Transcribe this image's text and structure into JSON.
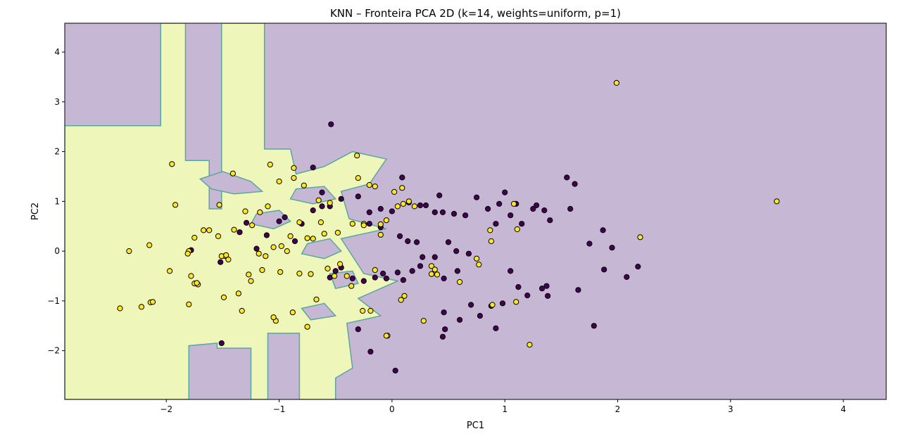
{
  "chart_data": {
    "type": "scatter",
    "title": "KNN – Fronteira PCA 2D (k=14, weights=uniform, p=1)",
    "xlabel": "PC1",
    "ylabel": "PC2",
    "xlim": [
      -2.9,
      4.38
    ],
    "ylim": [
      -2.98,
      4.58
    ],
    "xticks": [
      -2,
      -1,
      0,
      1,
      2,
      3,
      4
    ],
    "yticks": [
      -2,
      -1,
      0,
      1,
      2,
      3,
      4
    ],
    "grid": false,
    "colors": {
      "class_0_point": "#440154",
      "class_1_point": "#fde725",
      "class_0_region": "#c6b8d4",
      "class_1_region": "#eff6b9",
      "boundary": "#5aa6a0"
    },
    "decision_region_class1": [
      [
        -2.9,
        -2.98
      ],
      [
        -2.9,
        2.52
      ],
      [
        -2.05,
        2.52
      ],
      [
        -2.05,
        4.58
      ],
      [
        -1.83,
        4.58
      ],
      [
        -1.83,
        1.82
      ],
      [
        -1.62,
        1.82
      ],
      [
        -1.62,
        0.85
      ],
      [
        -1.51,
        0.85
      ],
      [
        -1.51,
        4.58
      ],
      [
        -1.13,
        4.58
      ],
      [
        -1.13,
        2.05
      ],
      [
        -0.9,
        2.05
      ],
      [
        -0.85,
        1.55
      ],
      [
        -0.6,
        1.7
      ],
      [
        -0.35,
        2.0
      ],
      [
        -0.05,
        1.85
      ],
      [
        -0.2,
        1.35
      ],
      [
        -0.45,
        1.2
      ],
      [
        -0.38,
        0.65
      ],
      [
        -0.05,
        0.45
      ],
      [
        -0.45,
        0.25
      ],
      [
        -0.25,
        -0.45
      ],
      [
        0.05,
        -0.6
      ],
      [
        -0.3,
        -0.95
      ],
      [
        -0.1,
        -1.3
      ],
      [
        -0.4,
        -1.45
      ],
      [
        -0.35,
        -2.35
      ],
      [
        -0.5,
        -2.55
      ],
      [
        -0.5,
        -2.98
      ],
      [
        -0.82,
        -2.98
      ],
      [
        -0.82,
        -1.65
      ],
      [
        -1.1,
        -1.65
      ],
      [
        -1.1,
        -2.98
      ],
      [
        -1.25,
        -2.98
      ],
      [
        -1.25,
        -1.95
      ],
      [
        -1.55,
        -1.95
      ],
      [
        -1.55,
        -1.85
      ],
      [
        -1.8,
        -1.9
      ],
      [
        -1.8,
        -2.98
      ]
    ],
    "decision_region_class0_islands": [
      [
        [
          -1.7,
          1.45
        ],
        [
          -1.5,
          1.6
        ],
        [
          -1.25,
          1.4
        ],
        [
          -1.15,
          1.2
        ],
        [
          -1.4,
          1.15
        ],
        [
          -1.6,
          1.25
        ]
      ],
      [
        [
          -1.2,
          0.75
        ],
        [
          -1.0,
          0.82
        ],
        [
          -0.9,
          0.6
        ],
        [
          -1.05,
          0.45
        ],
        [
          -1.25,
          0.55
        ]
      ],
      [
        [
          -0.85,
          1.25
        ],
        [
          -0.6,
          1.3
        ],
        [
          -0.5,
          1.05
        ],
        [
          -0.7,
          0.95
        ],
        [
          -0.9,
          1.05
        ]
      ],
      [
        [
          -0.75,
          0.15
        ],
        [
          -0.55,
          0.25
        ],
        [
          -0.45,
          0.0
        ],
        [
          -0.6,
          -0.15
        ],
        [
          -0.8,
          -0.05
        ]
      ],
      [
        [
          -0.55,
          -0.45
        ],
        [
          -0.35,
          -0.4
        ],
        [
          -0.3,
          -0.65
        ],
        [
          -0.5,
          -0.75
        ]
      ],
      [
        [
          -0.8,
          -1.15
        ],
        [
          -0.6,
          -1.05
        ],
        [
          -0.5,
          -1.3
        ],
        [
          -0.72,
          -1.38
        ]
      ]
    ],
    "series": [
      {
        "class": 0,
        "x": [
          -0.54,
          -1.78,
          -1.52,
          -1.29,
          -1.11,
          -1.0,
          -0.95,
          -0.8,
          -0.7,
          -0.62,
          -0.55,
          -0.45,
          -0.3,
          -0.2,
          -0.1,
          0.0,
          0.07,
          0.15,
          0.25,
          0.3,
          0.38,
          0.45,
          0.55,
          0.65,
          0.75,
          0.85,
          0.95,
          1.05,
          1.15,
          1.25,
          1.35,
          1.4,
          1.55,
          1.62,
          1.58,
          1.75,
          1.87,
          1.95,
          1.88,
          2.08,
          2.18,
          1.79,
          1.65,
          1.37,
          1.33,
          1.2,
          1.12,
          1.05,
          0.98,
          0.92,
          0.88,
          0.78,
          0.7,
          0.6,
          0.47,
          0.45,
          0.38,
          0.25,
          0.18,
          0.1,
          0.05,
          -0.08,
          -0.15,
          -0.25,
          -0.35,
          -0.45,
          -0.5,
          -0.3,
          -0.19,
          0.03,
          -0.55,
          -1.2,
          -1.35,
          -1.51,
          0.46,
          0.46,
          0.58,
          0.68,
          0.92,
          1.38,
          0.42,
          0.57,
          0.5,
          0.27,
          0.14,
          0.22,
          -0.62,
          -0.2,
          -0.1,
          0.09,
          -0.86,
          -0.7,
          -0.05,
          1.0,
          1.1,
          1.28
        ],
        "y": [
          2.55,
          0.02,
          -0.22,
          0.57,
          0.32,
          0.6,
          0.68,
          0.55,
          1.68,
          1.18,
          0.9,
          1.05,
          1.1,
          0.78,
          0.85,
          0.8,
          0.3,
          0.98,
          0.92,
          0.92,
          0.78,
          0.78,
          0.75,
          0.72,
          1.08,
          0.85,
          0.95,
          0.72,
          0.55,
          0.85,
          0.82,
          0.62,
          1.48,
          1.35,
          0.85,
          0.15,
          0.42,
          0.07,
          -0.37,
          -0.52,
          -0.31,
          -1.5,
          -0.78,
          -0.7,
          -0.75,
          -0.89,
          -0.72,
          -0.4,
          -1.05,
          -1.55,
          -1.1,
          -1.3,
          -1.08,
          -1.38,
          -1.57,
          -1.72,
          -0.12,
          -0.3,
          -0.4,
          -0.58,
          -0.43,
          -0.45,
          -0.53,
          -0.6,
          -0.55,
          -0.33,
          -0.4,
          -1.57,
          -2.02,
          -2.4,
          -0.53,
          0.05,
          0.38,
          -1.85,
          -1.23,
          -0.55,
          -0.4,
          -0.05,
          0.55,
          -0.9,
          1.12,
          0.0,
          0.18,
          -0.12,
          0.2,
          0.18,
          0.9,
          0.55,
          0.48,
          1.48,
          0.2,
          0.82,
          -0.55,
          1.18,
          0.95,
          0.92
        ]
      },
      {
        "class": 1,
        "x": [
          1.99,
          3.41,
          2.2,
          -1.95,
          -1.08,
          -0.87,
          -1.41,
          -1.53,
          -1.67,
          -1.75,
          -1.8,
          -2.15,
          -1.92,
          -2.14,
          -2.33,
          -2.41,
          -2.22,
          -2.12,
          -1.97,
          -1.81,
          -1.78,
          -1.72,
          -1.75,
          -1.8,
          -1.54,
          -1.48,
          -1.45,
          -1.4,
          -1.3,
          -1.25,
          -1.18,
          -1.1,
          -1.05,
          -0.98,
          -0.9,
          -0.82,
          -0.75,
          -0.7,
          -0.65,
          -0.6,
          -0.55,
          -0.48,
          -0.4,
          -0.35,
          -0.3,
          -0.25,
          -0.2,
          -0.15,
          -0.1,
          -0.05,
          0.05,
          0.1,
          0.15,
          0.2,
          0.28,
          0.35,
          0.4,
          0.6,
          0.75,
          0.77,
          0.87,
          0.88,
          1.08,
          1.11,
          1.1,
          1.22,
          0.89,
          -1.51,
          -1.36,
          -1.15,
          -1.03,
          -0.88,
          -0.75,
          -0.67,
          -1.12,
          -0.99,
          -0.82,
          -1.33,
          -1.62,
          -1.47,
          -1.49,
          -1.73,
          -1.27,
          -0.46,
          -0.26,
          -0.31,
          0.11,
          -0.04,
          0.08,
          0.35,
          0.38,
          -0.78,
          -0.87,
          -1.0,
          -1.05,
          -0.57,
          -0.51,
          -0.36,
          -0.1,
          -0.25,
          -0.63,
          -1.17,
          -1.24,
          -0.72,
          -0.93,
          0.09,
          -0.15,
          -0.19,
          -0.05,
          0.02
        ],
        "y": [
          3.38,
          1.0,
          0.28,
          1.75,
          1.74,
          1.67,
          1.56,
          0.93,
          0.42,
          0.27,
          0.0,
          0.12,
          0.93,
          -1.03,
          0.0,
          -1.15,
          -1.12,
          -1.02,
          -0.4,
          -0.05,
          -0.5,
          -0.67,
          -0.65,
          -1.07,
          0.3,
          -0.1,
          -0.17,
          0.43,
          0.8,
          -0.6,
          -0.05,
          0.9,
          0.08,
          0.1,
          0.3,
          0.58,
          0.26,
          0.25,
          1.02,
          0.35,
          0.97,
          0.37,
          -0.5,
          0.55,
          1.47,
          0.55,
          1.33,
          1.3,
          0.54,
          0.62,
          0.9,
          0.95,
          1.0,
          0.9,
          -1.4,
          -0.3,
          -0.47,
          -0.62,
          -0.15,
          -0.27,
          0.42,
          0.2,
          0.95,
          0.44,
          -1.02,
          -1.88,
          -1.08,
          -0.1,
          -0.85,
          -0.38,
          -1.4,
          -1.23,
          -1.52,
          -0.97,
          -0.1,
          -0.42,
          -0.45,
          -1.2,
          0.42,
          -0.08,
          -0.93,
          -0.64,
          -0.47,
          -0.26,
          -1.2,
          1.92,
          -0.9,
          -1.7,
          -0.98,
          -0.46,
          -0.37,
          1.32,
          1.47,
          1.4,
          -1.33,
          -0.35,
          -0.5,
          -0.7,
          0.33,
          0.52,
          0.58,
          0.78,
          0.52,
          -0.46,
          0.0,
          1.27,
          -0.38,
          -1.2,
          -1.7,
          1.19
        ]
      }
    ]
  }
}
